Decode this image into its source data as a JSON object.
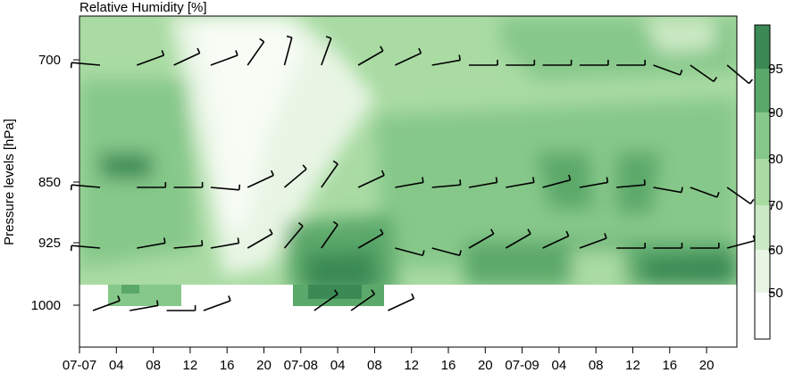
{
  "chart_data": {
    "type": "heatmap",
    "title": "Relative Humidity [%]",
    "xlabel": "",
    "ylabel": "Pressure levels [hPa]",
    "y_levels": [
      700,
      850,
      925,
      1000
    ],
    "y_tick_labels": [
      "700",
      "850",
      "925",
      "1000"
    ],
    "x_tick_labels": [
      "07-07",
      "04",
      "08",
      "12",
      "16",
      "20",
      "07-08",
      "04",
      "08",
      "12",
      "16",
      "20",
      "07-09",
      "04",
      "08",
      "12",
      "16",
      "20"
    ],
    "colorbar": {
      "ticks": [
        50,
        60,
        70,
        80,
        90,
        95
      ],
      "range": [
        40,
        100
      ],
      "colors": [
        "#ffffff",
        "#e8f5e4",
        "#cbe9c4",
        "#a9dba3",
        "#86c88a",
        "#5ba96a",
        "#3b8a55"
      ]
    },
    "wind_barbs_note": "wind barbs at 700, 850, 925 and 1000 hPa",
    "approx_rh": {
      "time_index": [
        0,
        3,
        6,
        9,
        12,
        15,
        18,
        21,
        24,
        27,
        30,
        33,
        36,
        39,
        42,
        45,
        48,
        51,
        54
      ],
      "level_700": [
        75,
        72,
        60,
        55,
        50,
        45,
        55,
        60,
        65,
        68,
        70,
        72,
        75,
        78,
        80,
        82,
        80,
        78,
        76
      ],
      "level_850": [
        82,
        85,
        88,
        80,
        60,
        50,
        65,
        78,
        82,
        85,
        83,
        82,
        84,
        86,
        90,
        88,
        90,
        85,
        80
      ],
      "level_925": [
        80,
        82,
        83,
        78,
        65,
        55,
        80,
        88,
        92,
        88,
        84,
        82,
        85,
        88,
        86,
        84,
        82,
        80,
        78
      ],
      "level_1000": [
        78,
        82,
        80,
        75,
        null,
        null,
        90,
        95,
        92,
        null,
        null,
        null,
        null,
        null,
        null,
        null,
        null,
        null,
        null
      ]
    }
  }
}
